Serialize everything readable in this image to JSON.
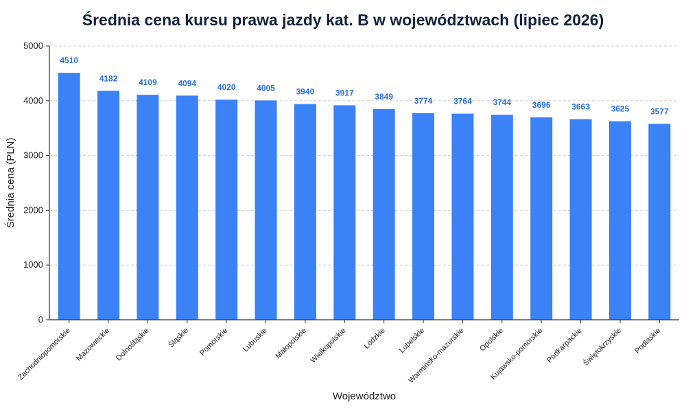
{
  "chart_data": {
    "type": "bar",
    "title": "Średnia cena kursu prawa jazdy kat. B w województwach (lipiec 2026)",
    "xlabel": "Województwo",
    "ylabel": "Średnia cena (PLN)",
    "ylim": [
      0,
      5000
    ],
    "yticks": [
      0,
      1000,
      2000,
      3000,
      4000,
      5000
    ],
    "grid": true,
    "categories": [
      "Zachodniopomorskie",
      "Mazowieckie",
      "Dolnośląskie",
      "Śląskie",
      "Pomorskie",
      "Lubuskie",
      "Małopolskie",
      "Wielkopolskie",
      "Łódzkie",
      "Lubelskie",
      "Warmińsko-mazurskie",
      "Opolskie",
      "Kujawsko-pomorskie",
      "Podkarpackie",
      "Świętokrzyskie",
      "Podlaskie"
    ],
    "values": [
      4510,
      4182,
      4109,
      4094,
      4020,
      4005,
      3940,
      3917,
      3849,
      3774,
      3764,
      3744,
      3696,
      3663,
      3625,
      3577
    ],
    "bar_color": "#3b82f6",
    "label_color": "#2a6fe0"
  }
}
